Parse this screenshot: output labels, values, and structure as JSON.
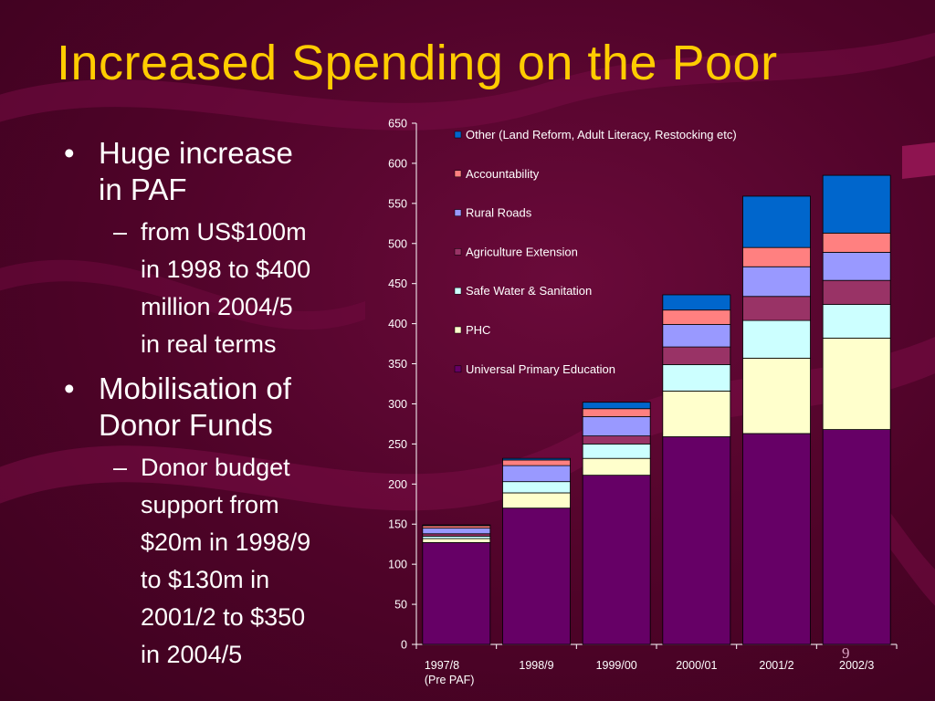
{
  "slide": {
    "title": "Increased Spending on the Poor",
    "page_number": "9"
  },
  "bullets": [
    {
      "text": "Huge increase in PAF",
      "lines": [
        "Huge increase",
        "in PAF"
      ],
      "sub": {
        "text": "from US$100m in 1998 to $400 million 2004/5 in real terms",
        "lines": [
          "from US$100m",
          "in 1998 to $400",
          "million 2004/5",
          "in real terms"
        ]
      }
    },
    {
      "text": "Mobilisation of Donor Funds",
      "lines": [
        "Mobilisation of",
        "Donor Funds"
      ],
      "sub": {
        "text": "Donor budget support from $20m in 1998/9 to $130m in 2001/2 to $350 in 2004/5",
        "lines": [
          "Donor budget",
          "support from",
          "$20m in 1998/9",
          "to $130m in",
          "2001/2 to $350",
          "in 2004/5"
        ]
      }
    }
  ],
  "chart_data": {
    "type": "bar",
    "stacked": true,
    "categories": [
      "1997/8 (Pre PAF)",
      "1998/9",
      "1999/00",
      "2000/01",
      "2001/2",
      "2002/3"
    ],
    "category_lines": [
      [
        "1997/8",
        "(Pre PAF)"
      ],
      [
        "1998/9"
      ],
      [
        "1999/00"
      ],
      [
        "2000/01"
      ],
      [
        "2001/2"
      ],
      [
        "2002/3"
      ]
    ],
    "ylim": [
      0,
      650
    ],
    "yticks": [
      0,
      50,
      100,
      150,
      200,
      250,
      300,
      350,
      400,
      450,
      500,
      550,
      600,
      650
    ],
    "legend_position": "top-left inside plot",
    "series": [
      {
        "name": "Universal Primary Education",
        "color": "#660066",
        "values": [
          127,
          170,
          211,
          259,
          263,
          268
        ]
      },
      {
        "name": "PHC",
        "color": "#ffffcc",
        "values": [
          5,
          19,
          21,
          57,
          94,
          114
        ]
      },
      {
        "name": "Safe Water & Sanitation",
        "color": "#ccffff",
        "values": [
          3,
          14,
          18,
          33,
          47,
          42
        ]
      },
      {
        "name": "Agriculture Extension",
        "color": "#993366",
        "values": [
          3,
          0,
          10,
          22,
          30,
          30
        ]
      },
      {
        "name": "Rural Roads",
        "color": "#9999ff",
        "values": [
          7,
          20,
          24,
          28,
          37,
          35
        ]
      },
      {
        "name": "Accountability",
        "color": "#ff8080",
        "values": [
          3,
          7,
          10,
          18,
          24,
          24
        ]
      },
      {
        "name": "Other (Land Reform, Adult Literacy, Restocking etc)",
        "color": "#0066cc",
        "values": [
          1,
          2,
          8,
          19,
          64,
          72
        ]
      }
    ]
  }
}
